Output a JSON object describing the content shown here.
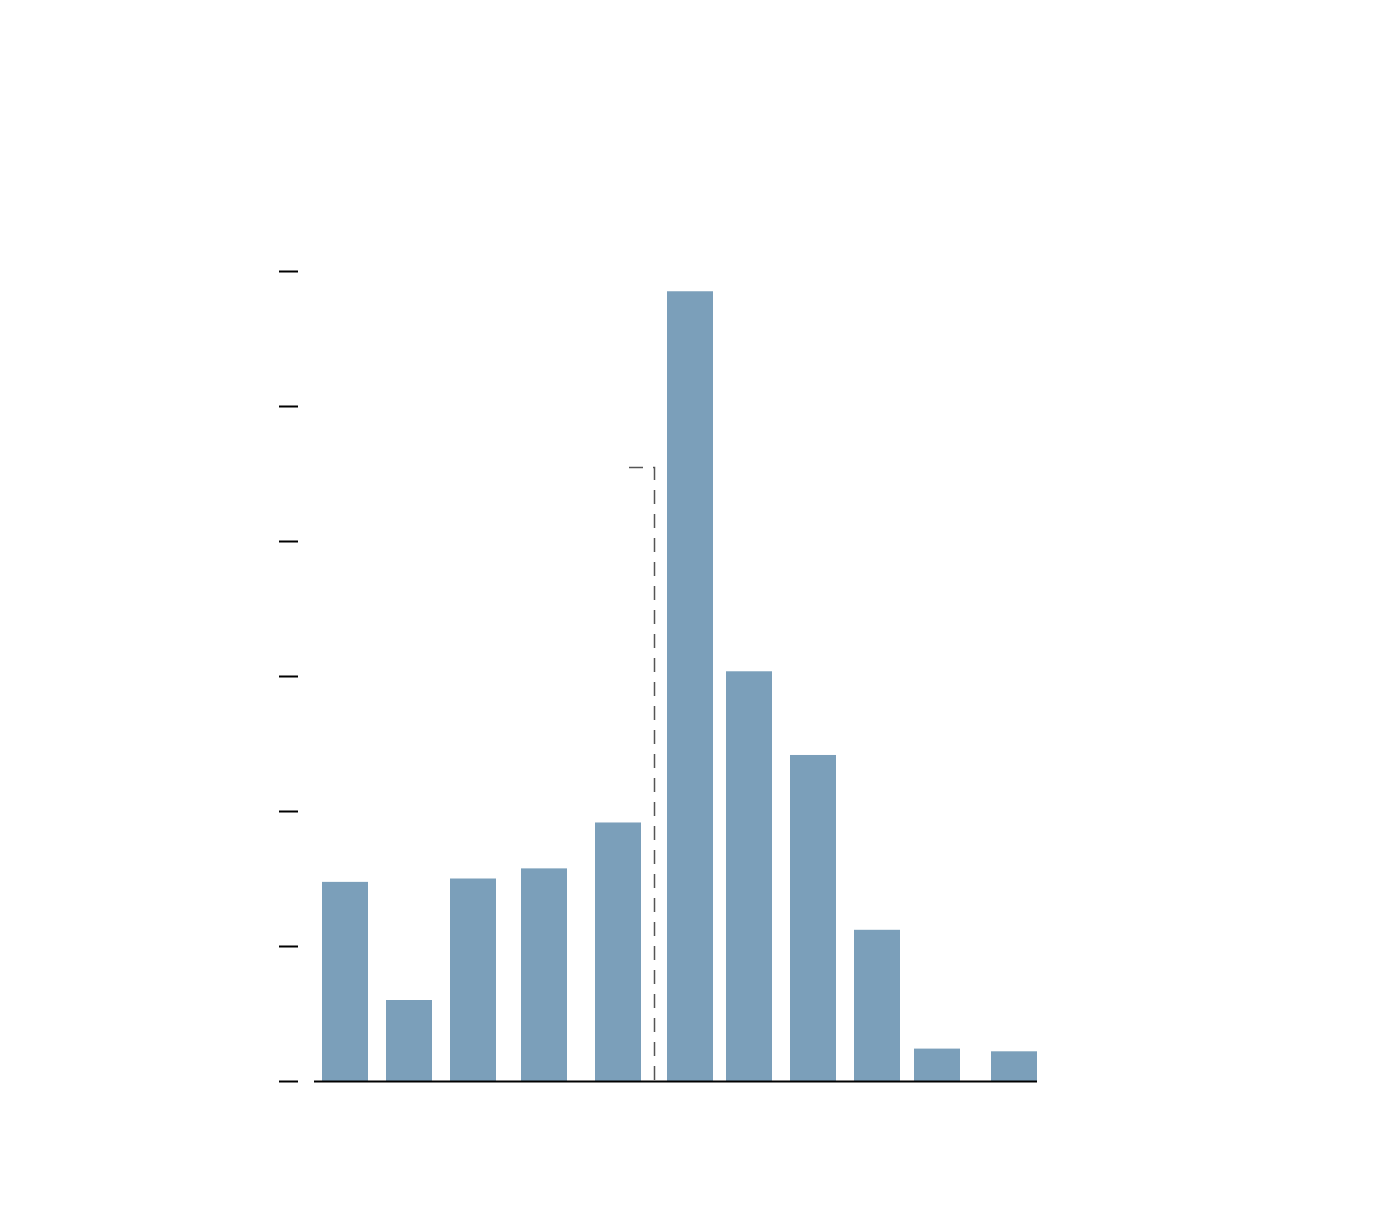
{
  "chart_data": {
    "type": "bar",
    "title": "",
    "xlabel": "",
    "ylabel": "",
    "ylim": [
      0,
      12
    ],
    "y_ticks": [
      0,
      2,
      4,
      6,
      8,
      10,
      12
    ],
    "y_tick_labels_visible": false,
    "x_tick_labels_visible": false,
    "grid": false,
    "legend": "none",
    "bar_color": "#7b9fba",
    "axis_color": "#000000",
    "values": [
      2.95,
      1.2,
      3.0,
      3.15,
      3.83,
      11.7,
      6.07,
      4.83,
      2.24,
      0.48,
      0.44
    ],
    "annotation": {
      "type": "dashed-bracket",
      "between_bars": [
        4,
        5
      ],
      "level": 9.1,
      "color": "#555555"
    }
  }
}
